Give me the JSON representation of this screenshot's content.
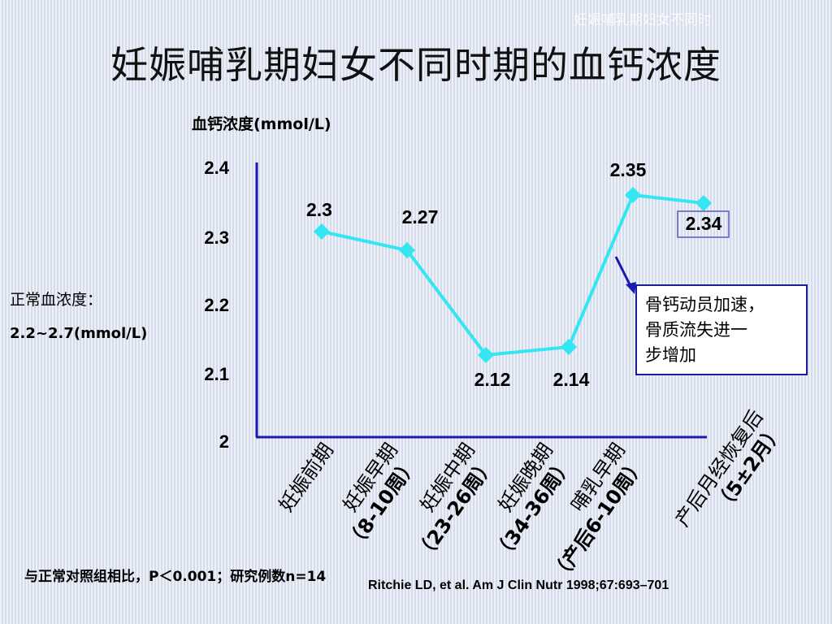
{
  "title": "妊娠哺乳期妇女不同时期的血钙浓度",
  "y_unit_label": "血钙浓度(mmol/L)",
  "normal_label": "正常血浓度：",
  "normal_range": "2.2~2.7(mmol/L)",
  "note": [
    "骨钙动员加速，",
    "骨质流失进一",
    "步增加"
  ],
  "footnote": "与正常对照组相比，P＜0.001；研究例数n=14",
  "citation": "Ritchie LD, et al. Am J Clin Nutr 1998;67:693–701",
  "corner_text": "妊娠哺乳期妇女不同时",
  "colors": {
    "line": "#33e6f2",
    "axis": "#1a1ab0",
    "arrow": "#1a1ab0",
    "background": "#dbe1ef"
  },
  "chart_data": {
    "type": "line",
    "title": "妊娠哺乳期妇女不同时期的血钙浓度",
    "ylabel": "血钙浓度(mmol/L)",
    "xlabel": "",
    "ylim": [
      2,
      2.4
    ],
    "yticks": [
      {
        "value": 2,
        "label": "2"
      },
      {
        "value": 2.1,
        "label": "2.1"
      },
      {
        "value": 2.2,
        "label": "2.2"
      },
      {
        "value": 2.3,
        "label": "2.3"
      },
      {
        "value": 2.4,
        "label": "2.4"
      }
    ],
    "categories": [
      {
        "name": "妊娠前期",
        "sub": ""
      },
      {
        "name": "妊娠早期",
        "sub": "（8-10周）"
      },
      {
        "name": "妊娠中期",
        "sub": "（23-26周）"
      },
      {
        "name": "妊娠晚期",
        "sub": "（34-36周）"
      },
      {
        "name": "哺乳早期",
        "sub": "（产后6-10周）"
      },
      {
        "name": "产后月经恢复后",
        "sub": "（5±2月）"
      }
    ],
    "series": [
      {
        "values": [
          2.3,
          2.27,
          2.12,
          2.14,
          2.35,
          2.34
        ]
      }
    ],
    "data_labels": [
      "2.3",
      "2.27",
      "2.12",
      "2.14",
      "2.35",
      "2.34"
    ],
    "marker": "diamond",
    "grid": false,
    "legend": "none"
  }
}
